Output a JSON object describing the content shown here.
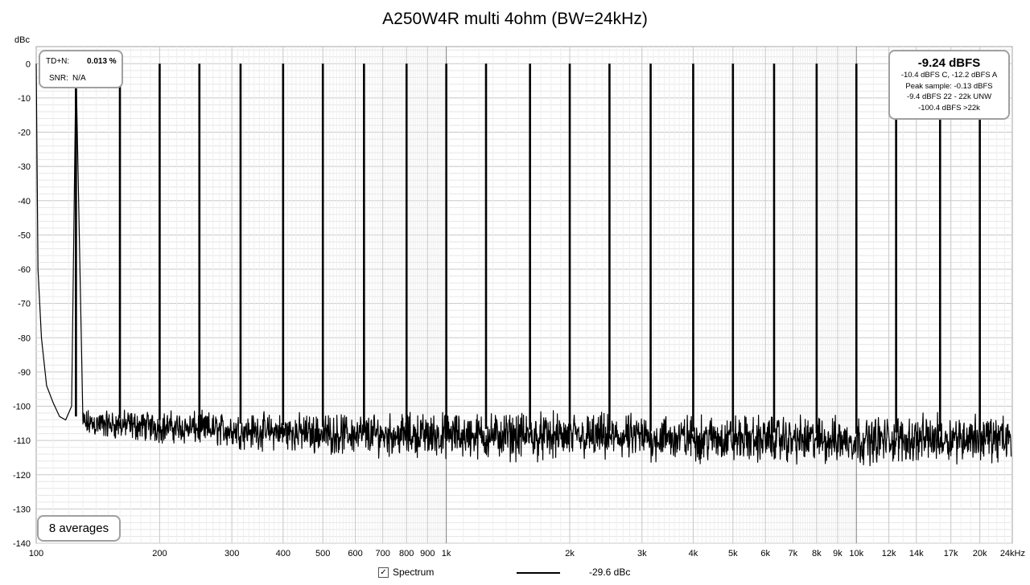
{
  "chart_data": {
    "type": "line",
    "title": "A250W4R multi 4ohm (BW=24kHz)",
    "ylabel": "dBc",
    "xlabel": "",
    "xscale": "log",
    "xlim": [
      100,
      24000
    ],
    "ylim": [
      -140,
      5
    ],
    "x_ticks": [
      {
        "value": 100,
        "label": "100"
      },
      {
        "value": 200,
        "label": "200"
      },
      {
        "value": 300,
        "label": "300"
      },
      {
        "value": 400,
        "label": "400"
      },
      {
        "value": 500,
        "label": "500"
      },
      {
        "value": 600,
        "label": "600"
      },
      {
        "value": 700,
        "label": "700"
      },
      {
        "value": 800,
        "label": "800"
      },
      {
        "value": 900,
        "label": "900"
      },
      {
        "value": 1000,
        "label": "1k"
      },
      {
        "value": 2000,
        "label": "2k"
      },
      {
        "value": 3000,
        "label": "3k"
      },
      {
        "value": 4000,
        "label": "4k"
      },
      {
        "value": 5000,
        "label": "5k"
      },
      {
        "value": 6000,
        "label": "6k"
      },
      {
        "value": 7000,
        "label": "7k"
      },
      {
        "value": 8000,
        "label": "8k"
      },
      {
        "value": 9000,
        "label": "9k"
      },
      {
        "value": 10000,
        "label": "10k"
      },
      {
        "value": 12000,
        "label": "12k"
      },
      {
        "value": 14000,
        "label": "14k"
      },
      {
        "value": 17000,
        "label": "17k"
      },
      {
        "value": 20000,
        "label": "20k"
      },
      {
        "value": 24000,
        "label": "24kHz"
      }
    ],
    "y_ticks": [
      0,
      -10,
      -20,
      -30,
      -40,
      -50,
      -60,
      -70,
      -80,
      -90,
      -100,
      -110,
      -120,
      -130,
      -140
    ],
    "grid": true,
    "series": [
      {
        "name": "Spectrum",
        "color": "#000000",
        "tones_hz": [
          125,
          160,
          200,
          250,
          315,
          400,
          500,
          630,
          800,
          1000,
          1250,
          1600,
          2000,
          2500,
          3150,
          4000,
          5000,
          6300,
          8000,
          10000,
          12500,
          16000,
          20000
        ],
        "tone_level_dbc": 0,
        "low_frequency_points": [
          [
            100,
            0
          ],
          [
            101,
            -60
          ],
          [
            103,
            -80
          ],
          [
            106,
            -94
          ],
          [
            110,
            -99
          ],
          [
            114,
            -103
          ],
          [
            118,
            -104
          ],
          [
            122,
            -100
          ],
          [
            125,
            0
          ]
        ],
        "noise_floor_points": [
          [
            130,
            -105
          ],
          [
            200,
            -106
          ],
          [
            300,
            -107
          ],
          [
            500,
            -108
          ],
          [
            1000,
            -108.5
          ],
          [
            2000,
            -109
          ],
          [
            5000,
            -109.5
          ],
          [
            10000,
            -110
          ],
          [
            20000,
            -109
          ],
          [
            24000,
            -110
          ]
        ],
        "noise_spread_db": 8
      }
    ],
    "annotations": {
      "thd_label": "TD+N:",
      "thd_value": "0.013 %",
      "snr_label": "SNR:",
      "snr_value": "N/A",
      "level_main": "-9.24 dBFS",
      "level_lines": [
        "-10.4 dBFS C, -12.2 dBFS A",
        "Peak sample: -0.13 dBFS",
        "-9.4 dBFS 22 - 22k UNW",
        "-100.4 dBFS >22k"
      ],
      "averages": "8 averages"
    },
    "legend": {
      "checked": true,
      "name": "Spectrum",
      "value": "-29.6 dBc"
    }
  }
}
